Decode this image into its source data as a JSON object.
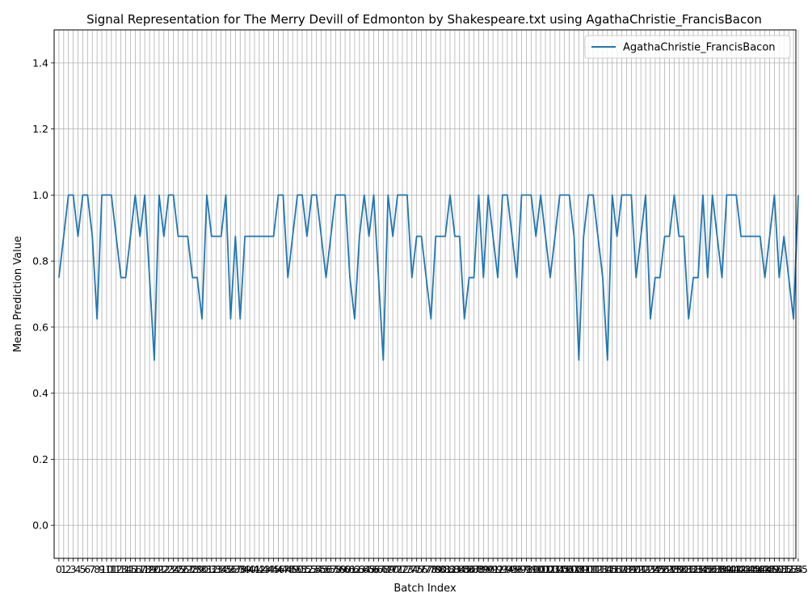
{
  "chart_data": {
    "type": "line",
    "title": "Signal Representation for The Merry Devill of Edmonton by Shakespeare.txt using AgathaChristie_FrancisBacon",
    "xlabel": "Batch Index",
    "ylabel": "Mean Prediction Value",
    "ylim": [
      -0.1,
      1.5
    ],
    "xlim": [
      -1,
      154.5
    ],
    "yticks": [
      0.0,
      0.2,
      0.4,
      0.6,
      0.8,
      1.0,
      1.2,
      1.4
    ],
    "grid": true,
    "legend_position": "top-right",
    "colors": {
      "series": "#1f77b4",
      "grid": "#b0b0b0"
    },
    "series": [
      {
        "name": "AgathaChristie_FrancisBacon",
        "values": [
          0.75,
          0.875,
          1.0,
          1.0,
          0.875,
          1.0,
          1.0,
          0.875,
          0.625,
          1.0,
          1.0,
          1.0,
          0.875,
          0.75,
          0.75,
          0.875,
          1.0,
          0.875,
          1.0,
          0.75,
          0.5,
          1.0,
          0.875,
          1.0,
          1.0,
          0.875,
          0.875,
          0.875,
          0.75,
          0.75,
          0.625,
          1.0,
          0.875,
          0.875,
          0.875,
          1.0,
          0.625,
          0.875,
          0.625,
          0.875,
          0.875,
          0.875,
          0.875,
          0.875,
          0.875,
          0.875,
          1.0,
          1.0,
          0.75,
          0.875,
          1.0,
          1.0,
          0.875,
          1.0,
          1.0,
          0.875,
          0.75,
          0.875,
          1.0,
          1.0,
          1.0,
          0.75,
          0.625,
          0.875,
          1.0,
          0.875,
          1.0,
          0.75,
          0.5,
          1.0,
          0.875,
          1.0,
          1.0,
          1.0,
          0.75,
          0.875,
          0.875,
          0.75,
          0.625,
          0.875,
          0.875,
          0.875,
          1.0,
          0.875,
          0.875,
          0.625,
          0.75,
          0.75,
          1.0,
          0.75,
          1.0,
          0.875,
          0.75,
          1.0,
          1.0,
          0.875,
          0.75,
          1.0,
          1.0,
          1.0,
          0.875,
          1.0,
          0.875,
          0.75,
          0.875,
          1.0,
          1.0,
          1.0,
          0.875,
          0.5,
          0.875,
          1.0,
          1.0,
          0.875,
          0.75,
          0.5,
          1.0,
          0.875,
          1.0,
          1.0,
          1.0,
          0.75,
          0.875,
          1.0,
          0.625,
          0.75,
          0.75,
          0.875,
          0.875,
          1.0,
          0.875,
          0.875,
          0.625,
          0.75,
          0.75,
          1.0,
          0.75,
          1.0,
          0.875,
          0.75,
          1.0,
          1.0,
          1.0,
          0.875,
          0.875,
          0.875,
          0.875,
          0.875,
          0.75,
          0.875,
          1.0,
          0.75,
          0.875,
          0.75,
          0.625,
          1.0
        ]
      }
    ]
  }
}
